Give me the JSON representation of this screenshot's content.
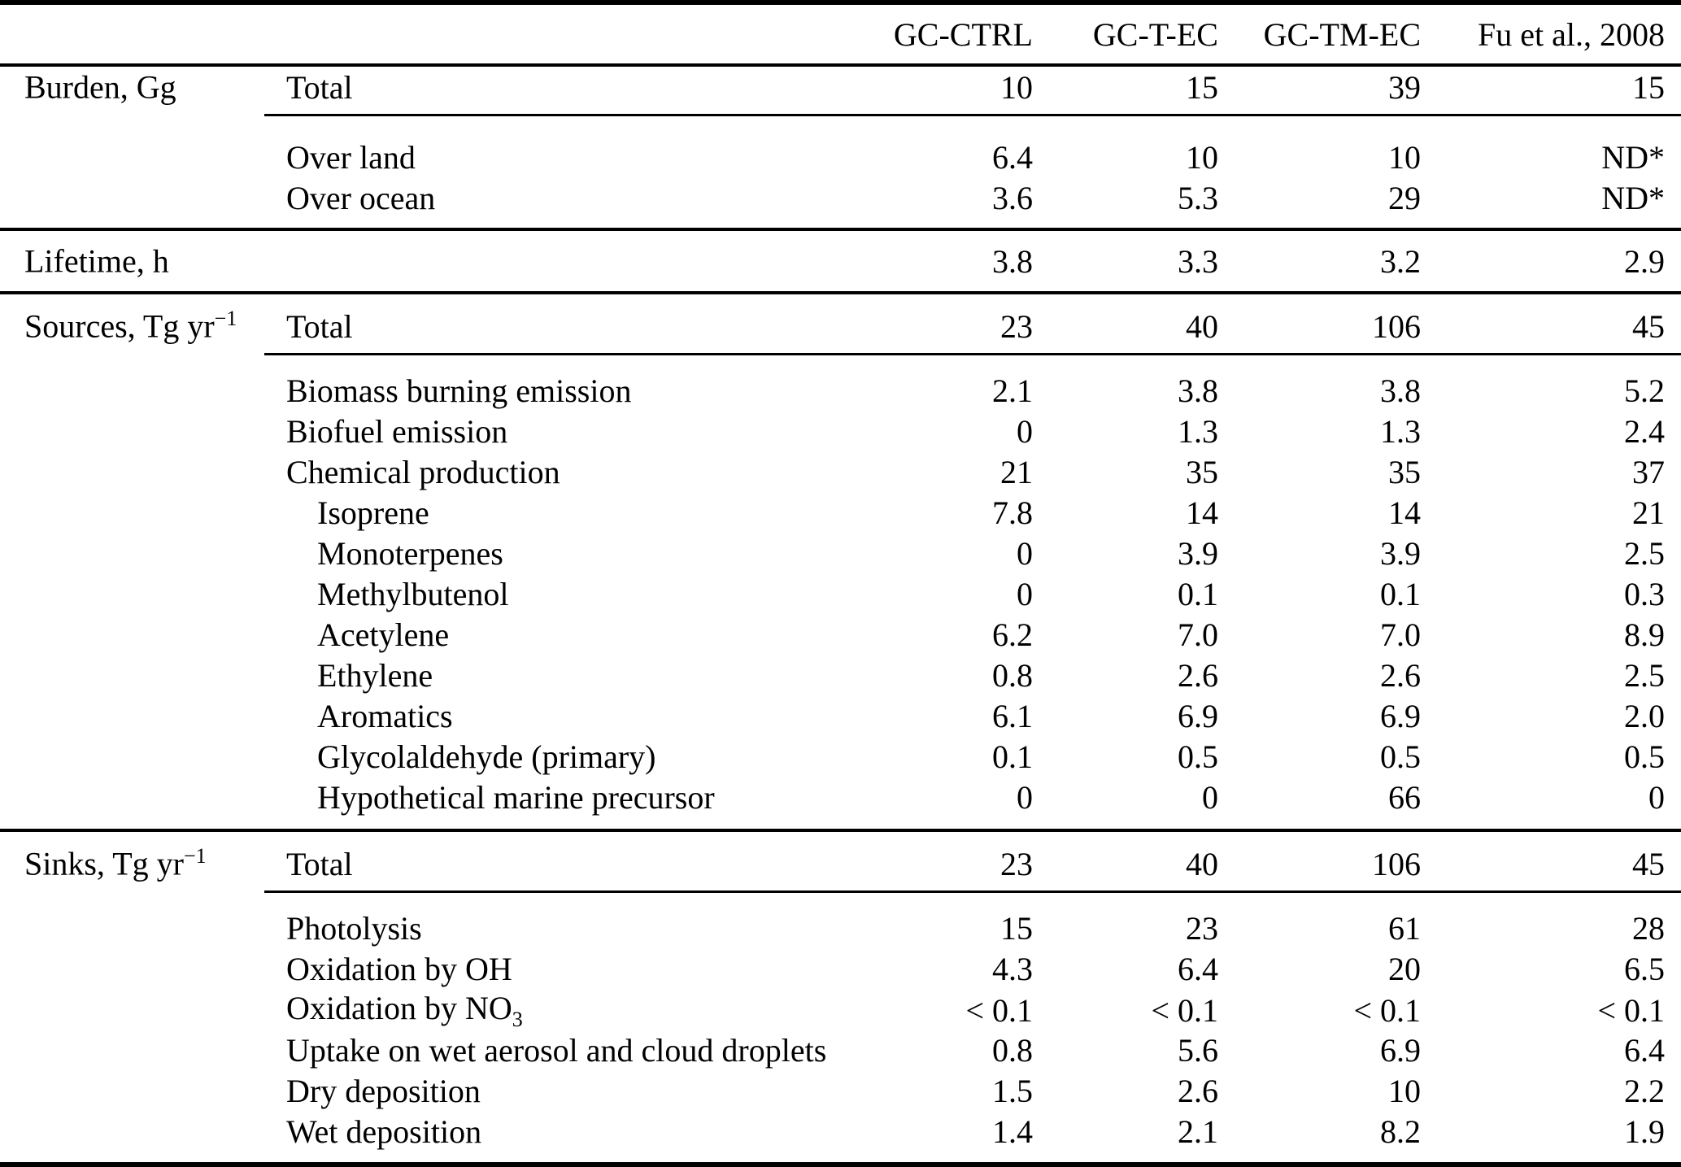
{
  "table": {
    "columns": [
      "GC-CTRL",
      "GC-T-EC",
      "GC-TM-EC",
      "Fu et al., 2008"
    ],
    "sections": [
      {
        "group": {
          "text": "Burden, Gg"
        },
        "rows": [
          {
            "label": {
              "text": "Total"
            },
            "values": [
              "10",
              "15",
              "39",
              "15"
            ]
          },
          {
            "label": {
              "text": "Over land"
            },
            "values": [
              "6.4",
              "10",
              "10",
              "ND*"
            ]
          },
          {
            "label": {
              "text": "Over ocean"
            },
            "values": [
              "3.6",
              "5.3",
              "29",
              "ND*"
            ]
          }
        ]
      },
      {
        "group": {
          "text": "Lifetime, h"
        },
        "rows": [
          {
            "label": {
              "text": ""
            },
            "values": [
              "3.8",
              "3.3",
              "3.2",
              "2.9"
            ]
          }
        ]
      },
      {
        "group": {
          "text": "Sources, Tg yr",
          "sup": "−1"
        },
        "rows": [
          {
            "label": {
              "text": "Total"
            },
            "values": [
              "23",
              "40",
              "106",
              "45"
            ]
          },
          {
            "label": {
              "text": "Biomass burning emission"
            },
            "values": [
              "2.1",
              "3.8",
              "3.8",
              "5.2"
            ]
          },
          {
            "label": {
              "text": "Biofuel emission"
            },
            "values": [
              "0",
              "1.3",
              "1.3",
              "2.4"
            ]
          },
          {
            "label": {
              "text": "Chemical production"
            },
            "values": [
              "21",
              "35",
              "35",
              "37"
            ]
          },
          {
            "label": {
              "text": "Isoprene"
            },
            "values": [
              "7.8",
              "14",
              "14",
              "21"
            ]
          },
          {
            "label": {
              "text": "Monoterpenes"
            },
            "values": [
              "0",
              "3.9",
              "3.9",
              "2.5"
            ]
          },
          {
            "label": {
              "text": "Methylbutenol"
            },
            "values": [
              "0",
              "0.1",
              "0.1",
              "0.3"
            ]
          },
          {
            "label": {
              "text": "Acetylene"
            },
            "values": [
              "6.2",
              "7.0",
              "7.0",
              "8.9"
            ]
          },
          {
            "label": {
              "text": "Ethylene"
            },
            "values": [
              "0.8",
              "2.6",
              "2.6",
              "2.5"
            ]
          },
          {
            "label": {
              "text": "Aromatics"
            },
            "values": [
              "6.1",
              "6.9",
              "6.9",
              "2.0"
            ]
          },
          {
            "label": {
              "text": "Glycolaldehyde (primary)"
            },
            "values": [
              "0.1",
              "0.5",
              "0.5",
              "0.5"
            ]
          },
          {
            "label": {
              "text": "Hypothetical marine precursor"
            },
            "values": [
              "0",
              "0",
              "66",
              "0"
            ]
          }
        ]
      },
      {
        "group": {
          "text": "Sinks, Tg yr",
          "sup": "−1"
        },
        "rows": [
          {
            "label": {
              "text": "Total"
            },
            "values": [
              "23",
              "40",
              "106",
              "45"
            ]
          },
          {
            "label": {
              "text": "Photolysis"
            },
            "values": [
              "15",
              "23",
              "61",
              "28"
            ]
          },
          {
            "label": {
              "text": "Oxidation by OH"
            },
            "values": [
              "4.3",
              "6.4",
              "20",
              "6.5"
            ]
          },
          {
            "label": {
              "text": "Oxidation by NO",
              "sub": "3"
            },
            "values": [
              "< 0.1",
              "< 0.1",
              "< 0.1",
              "< 0.1"
            ]
          },
          {
            "label": {
              "text": "Uptake on wet aerosol and cloud droplets"
            },
            "values": [
              "0.8",
              "5.6",
              "6.9",
              "6.4"
            ]
          },
          {
            "label": {
              "text": "Dry deposition"
            },
            "values": [
              "1.5",
              "2.6",
              "10",
              "2.2"
            ]
          },
          {
            "label": {
              "text": "Wet deposition"
            },
            "values": [
              "1.4",
              "2.1",
              "8.2",
              "1.9"
            ]
          }
        ]
      }
    ]
  }
}
